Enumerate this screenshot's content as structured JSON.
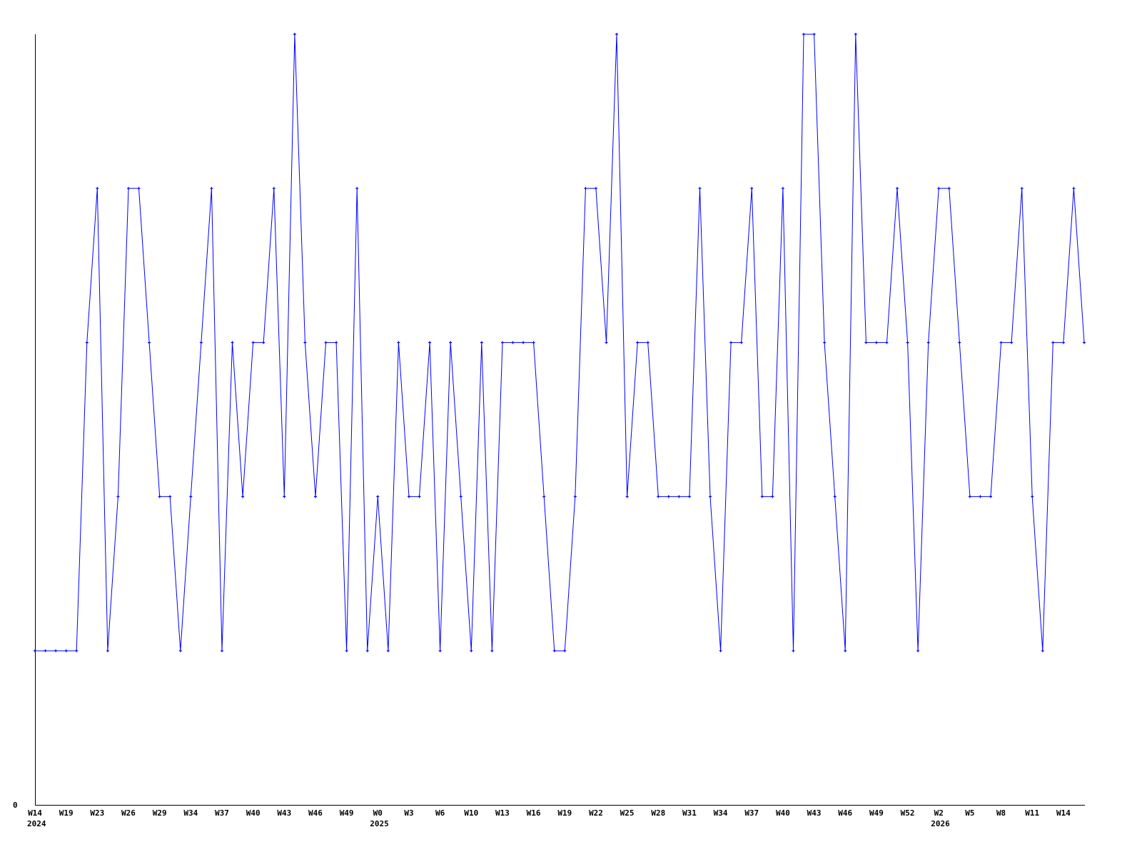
{
  "chart_data": {
    "type": "line",
    "title": "",
    "xlabel": "",
    "ylabel": "",
    "ylim": [
      0,
      5
    ],
    "y_tick_labels": [
      "0"
    ],
    "x_tick_labels": [
      "W14",
      "W19",
      "W23",
      "W26",
      "W29",
      "W34",
      "W37",
      "W40",
      "W43",
      "W46",
      "W49",
      "W0",
      "W3",
      "W6",
      "W10",
      "W13",
      "W16",
      "W19",
      "W22",
      "W25",
      "W28",
      "W31",
      "W34",
      "W37",
      "W40",
      "W43",
      "W46",
      "W49",
      "W52",
      "W2",
      "W5",
      "W8",
      "W11",
      "W14"
    ],
    "year_labels": [
      {
        "label": "2024",
        "at_tick": 0
      },
      {
        "label": "2025",
        "at_tick": 11
      },
      {
        "label": "2026",
        "at_tick": 29
      }
    ],
    "grid": false,
    "legend": "none",
    "line_color": "#0000ff",
    "axis_color": "#000000",
    "series": [
      {
        "values": [
          1,
          1,
          1,
          1,
          1,
          3,
          4,
          1,
          2,
          4,
          4,
          3,
          2,
          2,
          1,
          2,
          3,
          4,
          1,
          3,
          2,
          3,
          3,
          4,
          2,
          5,
          3,
          2,
          3,
          3,
          1,
          4,
          1,
          2,
          1,
          3,
          2,
          2,
          3,
          1,
          3,
          2,
          1,
          3,
          1,
          3,
          3,
          3,
          3,
          2,
          1,
          1,
          2,
          4,
          4,
          3,
          5,
          2,
          3,
          3,
          2,
          2,
          2,
          2,
          4,
          2,
          1,
          3,
          3,
          4,
          2,
          2,
          4,
          1,
          5,
          5,
          3,
          2,
          1,
          5,
          3,
          3,
          3,
          4,
          3,
          1,
          3,
          4,
          4,
          3,
          2,
          2,
          2,
          3,
          3,
          4,
          2,
          1,
          3,
          3,
          4,
          3
        ]
      }
    ]
  }
}
